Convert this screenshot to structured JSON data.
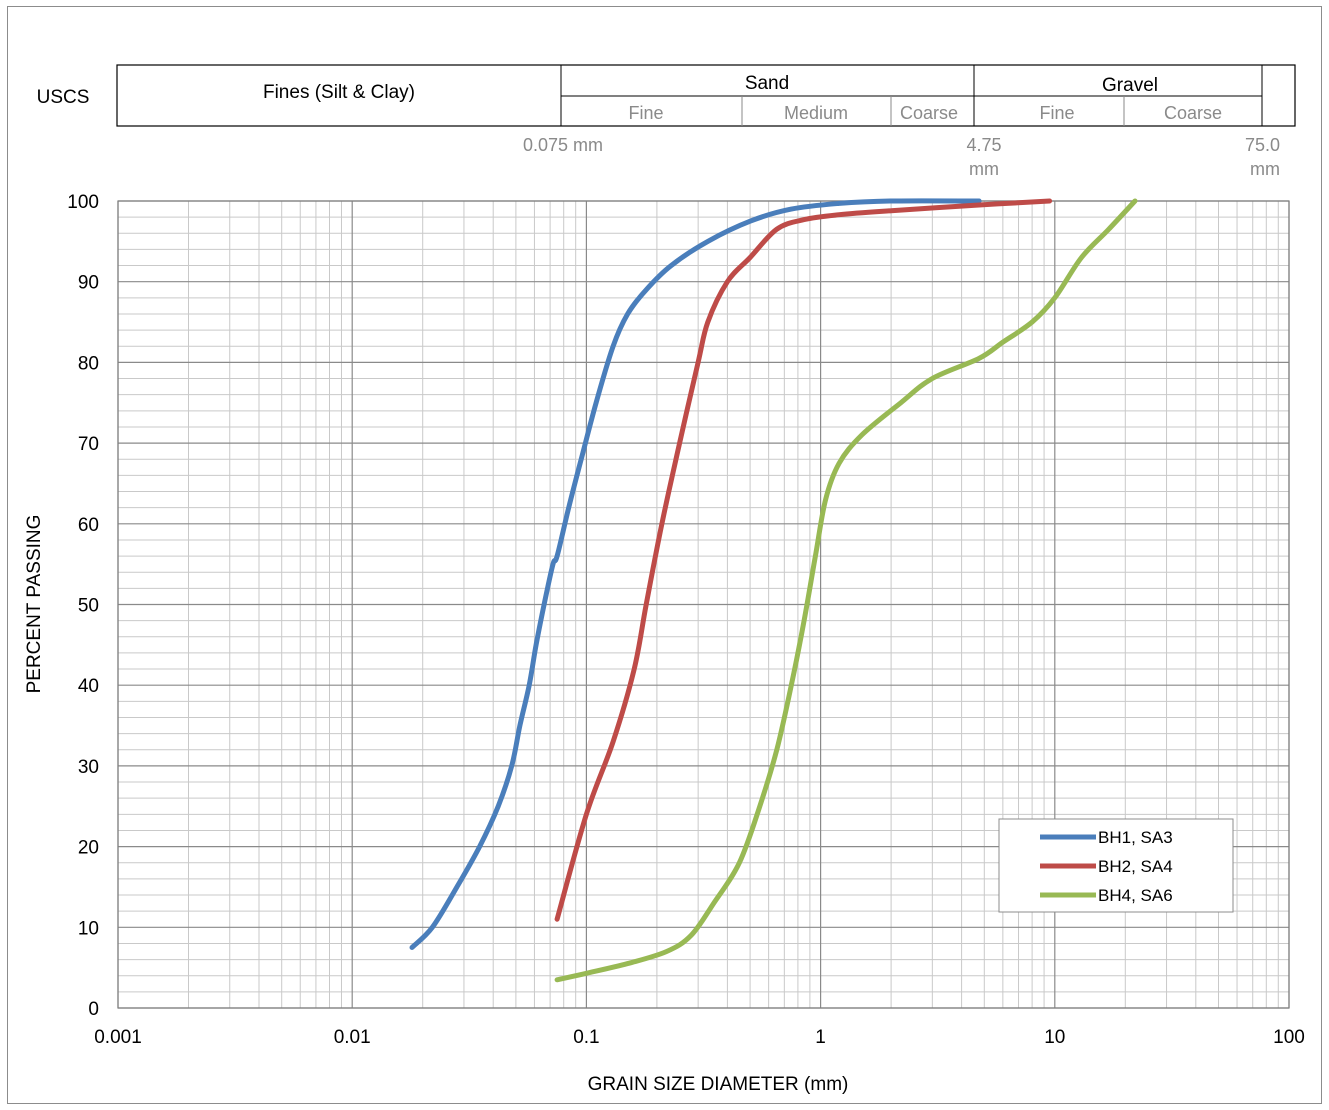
{
  "uscs": {
    "label": "USCS",
    "fines": "Fines (Silt & Clay)",
    "sand": "Sand",
    "gravel": "Gravel",
    "sand_fine": "Fine",
    "sand_medium": "Medium",
    "sand_coarse": "Coarse",
    "gravel_fine": "Fine",
    "gravel_coarse": "Coarse",
    "size_075": "0.075 mm",
    "size_475_value": "4.75",
    "size_475_unit": "mm",
    "size_75_value": "75.0",
    "size_75_unit": "mm"
  },
  "chart_data": {
    "type": "line",
    "xlabel": "GRAIN SIZE DIAMETER (mm)",
    "ylabel": "PERCENT PASSING",
    "xscale": "log",
    "xlim": [
      0.001,
      100
    ],
    "ylim": [
      0,
      100
    ],
    "x_ticks": [
      0.001,
      0.01,
      0.1,
      1,
      10,
      100
    ],
    "x_tick_labels": [
      "0.001",
      "0.01",
      "0.1",
      "1",
      "10",
      "100"
    ],
    "y_ticks": [
      0,
      10,
      20,
      30,
      40,
      50,
      60,
      70,
      80,
      90,
      100
    ],
    "y_tick_labels": [
      "0",
      "10",
      "20",
      "30",
      "40",
      "50",
      "60",
      "70",
      "80",
      "90",
      "100"
    ],
    "grid": true,
    "legend_position": "bottom-right",
    "series": [
      {
        "name": "BH1, SA3",
        "color": "#4a7ebb",
        "points": [
          [
            0.018,
            7.5
          ],
          [
            0.022,
            10
          ],
          [
            0.028,
            15
          ],
          [
            0.035,
            20
          ],
          [
            0.042,
            25
          ],
          [
            0.048,
            30
          ],
          [
            0.052,
            35
          ],
          [
            0.057,
            40
          ],
          [
            0.061,
            45
          ],
          [
            0.066,
            50
          ],
          [
            0.072,
            55
          ],
          [
            0.075,
            56
          ],
          [
            0.084,
            62
          ],
          [
            0.095,
            68
          ],
          [
            0.11,
            75
          ],
          [
            0.13,
            82
          ],
          [
            0.15,
            86
          ],
          [
            0.18,
            89
          ],
          [
            0.23,
            92
          ],
          [
            0.33,
            95
          ],
          [
            0.5,
            97.5
          ],
          [
            0.75,
            99
          ],
          [
            1.2,
            99.7
          ],
          [
            2,
            100
          ],
          [
            4.75,
            100
          ]
        ]
      },
      {
        "name": "BH2, SA4",
        "color": "#be4b48",
        "points": [
          [
            0.075,
            11
          ],
          [
            0.1,
            24
          ],
          [
            0.13,
            33
          ],
          [
            0.16,
            42
          ],
          [
            0.18,
            50
          ],
          [
            0.21,
            60
          ],
          [
            0.25,
            70
          ],
          [
            0.3,
            80
          ],
          [
            0.33,
            85
          ],
          [
            0.4,
            90
          ],
          [
            0.5,
            93
          ],
          [
            0.65,
            96.5
          ],
          [
            0.85,
            97.7
          ],
          [
            1.2,
            98.3
          ],
          [
            2,
            98.8
          ],
          [
            4.75,
            99.5
          ],
          [
            9.5,
            100
          ]
        ]
      },
      {
        "name": "BH4, SA6",
        "color": "#98b954",
        "points": [
          [
            0.075,
            3.5
          ],
          [
            0.1,
            4.3
          ],
          [
            0.15,
            5.5
          ],
          [
            0.22,
            7
          ],
          [
            0.28,
            9
          ],
          [
            0.35,
            13
          ],
          [
            0.45,
            18
          ],
          [
            0.55,
            25
          ],
          [
            0.65,
            32
          ],
          [
            0.75,
            40
          ],
          [
            0.85,
            48
          ],
          [
            0.95,
            56
          ],
          [
            1.05,
            63
          ],
          [
            1.2,
            67.5
          ],
          [
            1.5,
            71
          ],
          [
            2.2,
            75
          ],
          [
            3,
            78
          ],
          [
            4.75,
            80.5
          ],
          [
            6,
            82.5
          ],
          [
            8,
            85
          ],
          [
            10,
            88
          ],
          [
            13,
            93
          ],
          [
            17,
            96.5
          ],
          [
            22,
            100
          ]
        ]
      }
    ]
  }
}
